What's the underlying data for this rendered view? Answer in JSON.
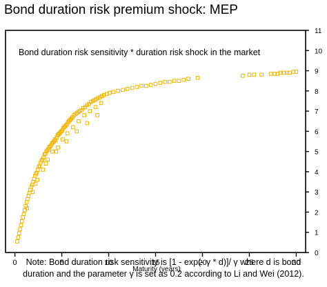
{
  "title": "Bond duration risk premium shock: MEP",
  "note_lines": [
    "Note: Bond duration risk sensitivity is [1 - exp(-  γ * d)]/ γ  where d is bond",
    "duration and the parameter γ is set as 0.2 according to Li and Wei (2012)."
  ],
  "chart_data": {
    "type": "scatter",
    "title": "Bond duration risk premium shock: MEP",
    "annotation": "Bond duration risk sensitivity * duration risk shock in the market",
    "xlabel": "Maturity (years)",
    "ylabel": "",
    "xlim": [
      -1,
      31
    ],
    "ylim": [
      0,
      11
    ],
    "x_ticks": [
      0,
      5,
      10,
      15,
      20,
      25,
      30
    ],
    "y_ticks": [
      0,
      1,
      2,
      3,
      4,
      5,
      6,
      7,
      8,
      9,
      10,
      11
    ],
    "y_axis_side": "right",
    "grid": false,
    "marker": "open-square",
    "color": "#F0B400",
    "x": [
      0.25,
      0.35,
      0.45,
      0.55,
      0.65,
      0.75,
      0.85,
      0.95,
      1.05,
      1.15,
      1.25,
      1.35,
      1.45,
      1.55,
      1.65,
      1.75,
      1.85,
      1.95,
      2.05,
      2.15,
      2.25,
      2.35,
      2.45,
      2.55,
      2.65,
      2.75,
      2.85,
      2.95,
      3.05,
      3.15,
      3.25,
      3.35,
      3.45,
      3.55,
      3.65,
      3.75,
      3.85,
      3.95,
      4.05,
      4.15,
      4.25,
      4.35,
      4.45,
      4.55,
      4.65,
      4.75,
      4.85,
      4.95,
      5.05,
      5.15,
      5.25,
      5.35,
      5.45,
      5.55,
      5.65,
      5.75,
      5.85,
      5.95,
      6.05,
      6.15,
      6.3,
      6.45,
      6.6,
      6.75,
      6.9,
      7.1,
      7.3,
      7.5,
      7.7,
      7.9,
      8.1,
      8.3,
      8.5,
      8.7,
      8.9,
      9.1,
      9.3,
      9.5,
      9.8,
      10.1,
      10.5,
      11.0,
      11.5,
      12.0,
      12.5,
      13.0,
      13.5,
      14.0,
      14.5,
      15.0,
      15.5,
      16.0,
      16.5,
      17.0,
      17.5,
      18.0,
      18.5,
      19.5,
      24.3,
      25.0,
      25.5,
      26.3,
      27.3,
      27.7,
      28.0,
      28.3,
      28.7,
      29.0,
      29.3,
      29.7,
      30.0,
      1.3,
      1.9,
      2.4,
      3.0,
      3.5,
      4.0,
      4.6,
      5.1,
      5.6,
      6.2,
      6.8,
      7.4,
      8.0,
      8.6,
      9.2,
      2.2,
      3.3,
      4.4,
      5.5,
      6.6,
      7.7,
      8.8
    ],
    "y": [
      0.55,
      0.75,
      0.95,
      1.15,
      1.35,
      1.55,
      1.75,
      1.9,
      2.1,
      2.3,
      2.5,
      2.65,
      2.8,
      2.95,
      3.1,
      3.25,
      3.35,
      3.5,
      3.65,
      3.8,
      3.9,
      3.95,
      4.1,
      4.25,
      4.3,
      4.45,
      4.55,
      4.6,
      4.7,
      4.85,
      4.9,
      5.0,
      5.05,
      5.1,
      5.2,
      5.25,
      5.3,
      5.4,
      5.45,
      5.5,
      5.6,
      5.55,
      5.7,
      5.8,
      5.85,
      5.9,
      5.95,
      6.0,
      6.05,
      6.15,
      6.2,
      6.25,
      6.3,
      6.35,
      6.45,
      6.5,
      6.55,
      6.6,
      6.65,
      6.7,
      6.8,
      6.85,
      6.9,
      6.95,
      7.0,
      7.05,
      7.15,
      7.2,
      7.3,
      7.35,
      7.45,
      7.5,
      7.55,
      7.6,
      7.65,
      7.7,
      7.75,
      7.8,
      7.85,
      7.9,
      7.95,
      8.0,
      8.05,
      8.1,
      8.15,
      8.2,
      8.25,
      8.25,
      8.3,
      8.35,
      8.4,
      8.45,
      8.45,
      8.5,
      8.5,
      8.55,
      8.6,
      8.65,
      8.75,
      8.8,
      8.8,
      8.8,
      8.85,
      8.85,
      8.85,
      8.9,
      8.9,
      8.9,
      8.9,
      8.95,
      8.95,
      2.2,
      3.0,
      3.6,
      4.1,
      4.6,
      5.0,
      5.2,
      5.6,
      5.9,
      6.2,
      6.5,
      6.8,
      7.0,
      7.2,
      7.4,
      3.4,
      4.4,
      5.0,
      5.5,
      6.0,
      6.4,
      6.8
    ]
  }
}
